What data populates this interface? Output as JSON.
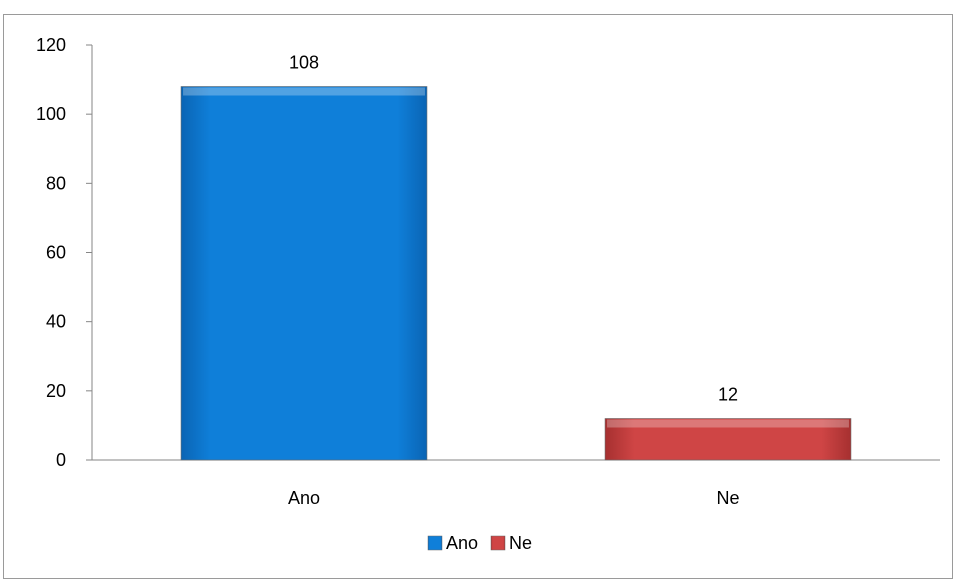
{
  "chart_data": {
    "type": "bar",
    "categories": [
      "Ano",
      "Ne"
    ],
    "values": [
      108,
      12
    ],
    "colors": [
      "#0f7fd9",
      "#cf4545"
    ],
    "ylim": [
      0,
      120
    ],
    "yticks": [
      0,
      20,
      40,
      60,
      80,
      100,
      120
    ],
    "data_labels": [
      "108",
      "12"
    ],
    "legend": {
      "position": "bottom",
      "entries": [
        {
          "label": "Ano",
          "color": "#0f7fd9"
        },
        {
          "label": "Ne",
          "color": "#cf4545"
        }
      ]
    },
    "grid": false
  }
}
